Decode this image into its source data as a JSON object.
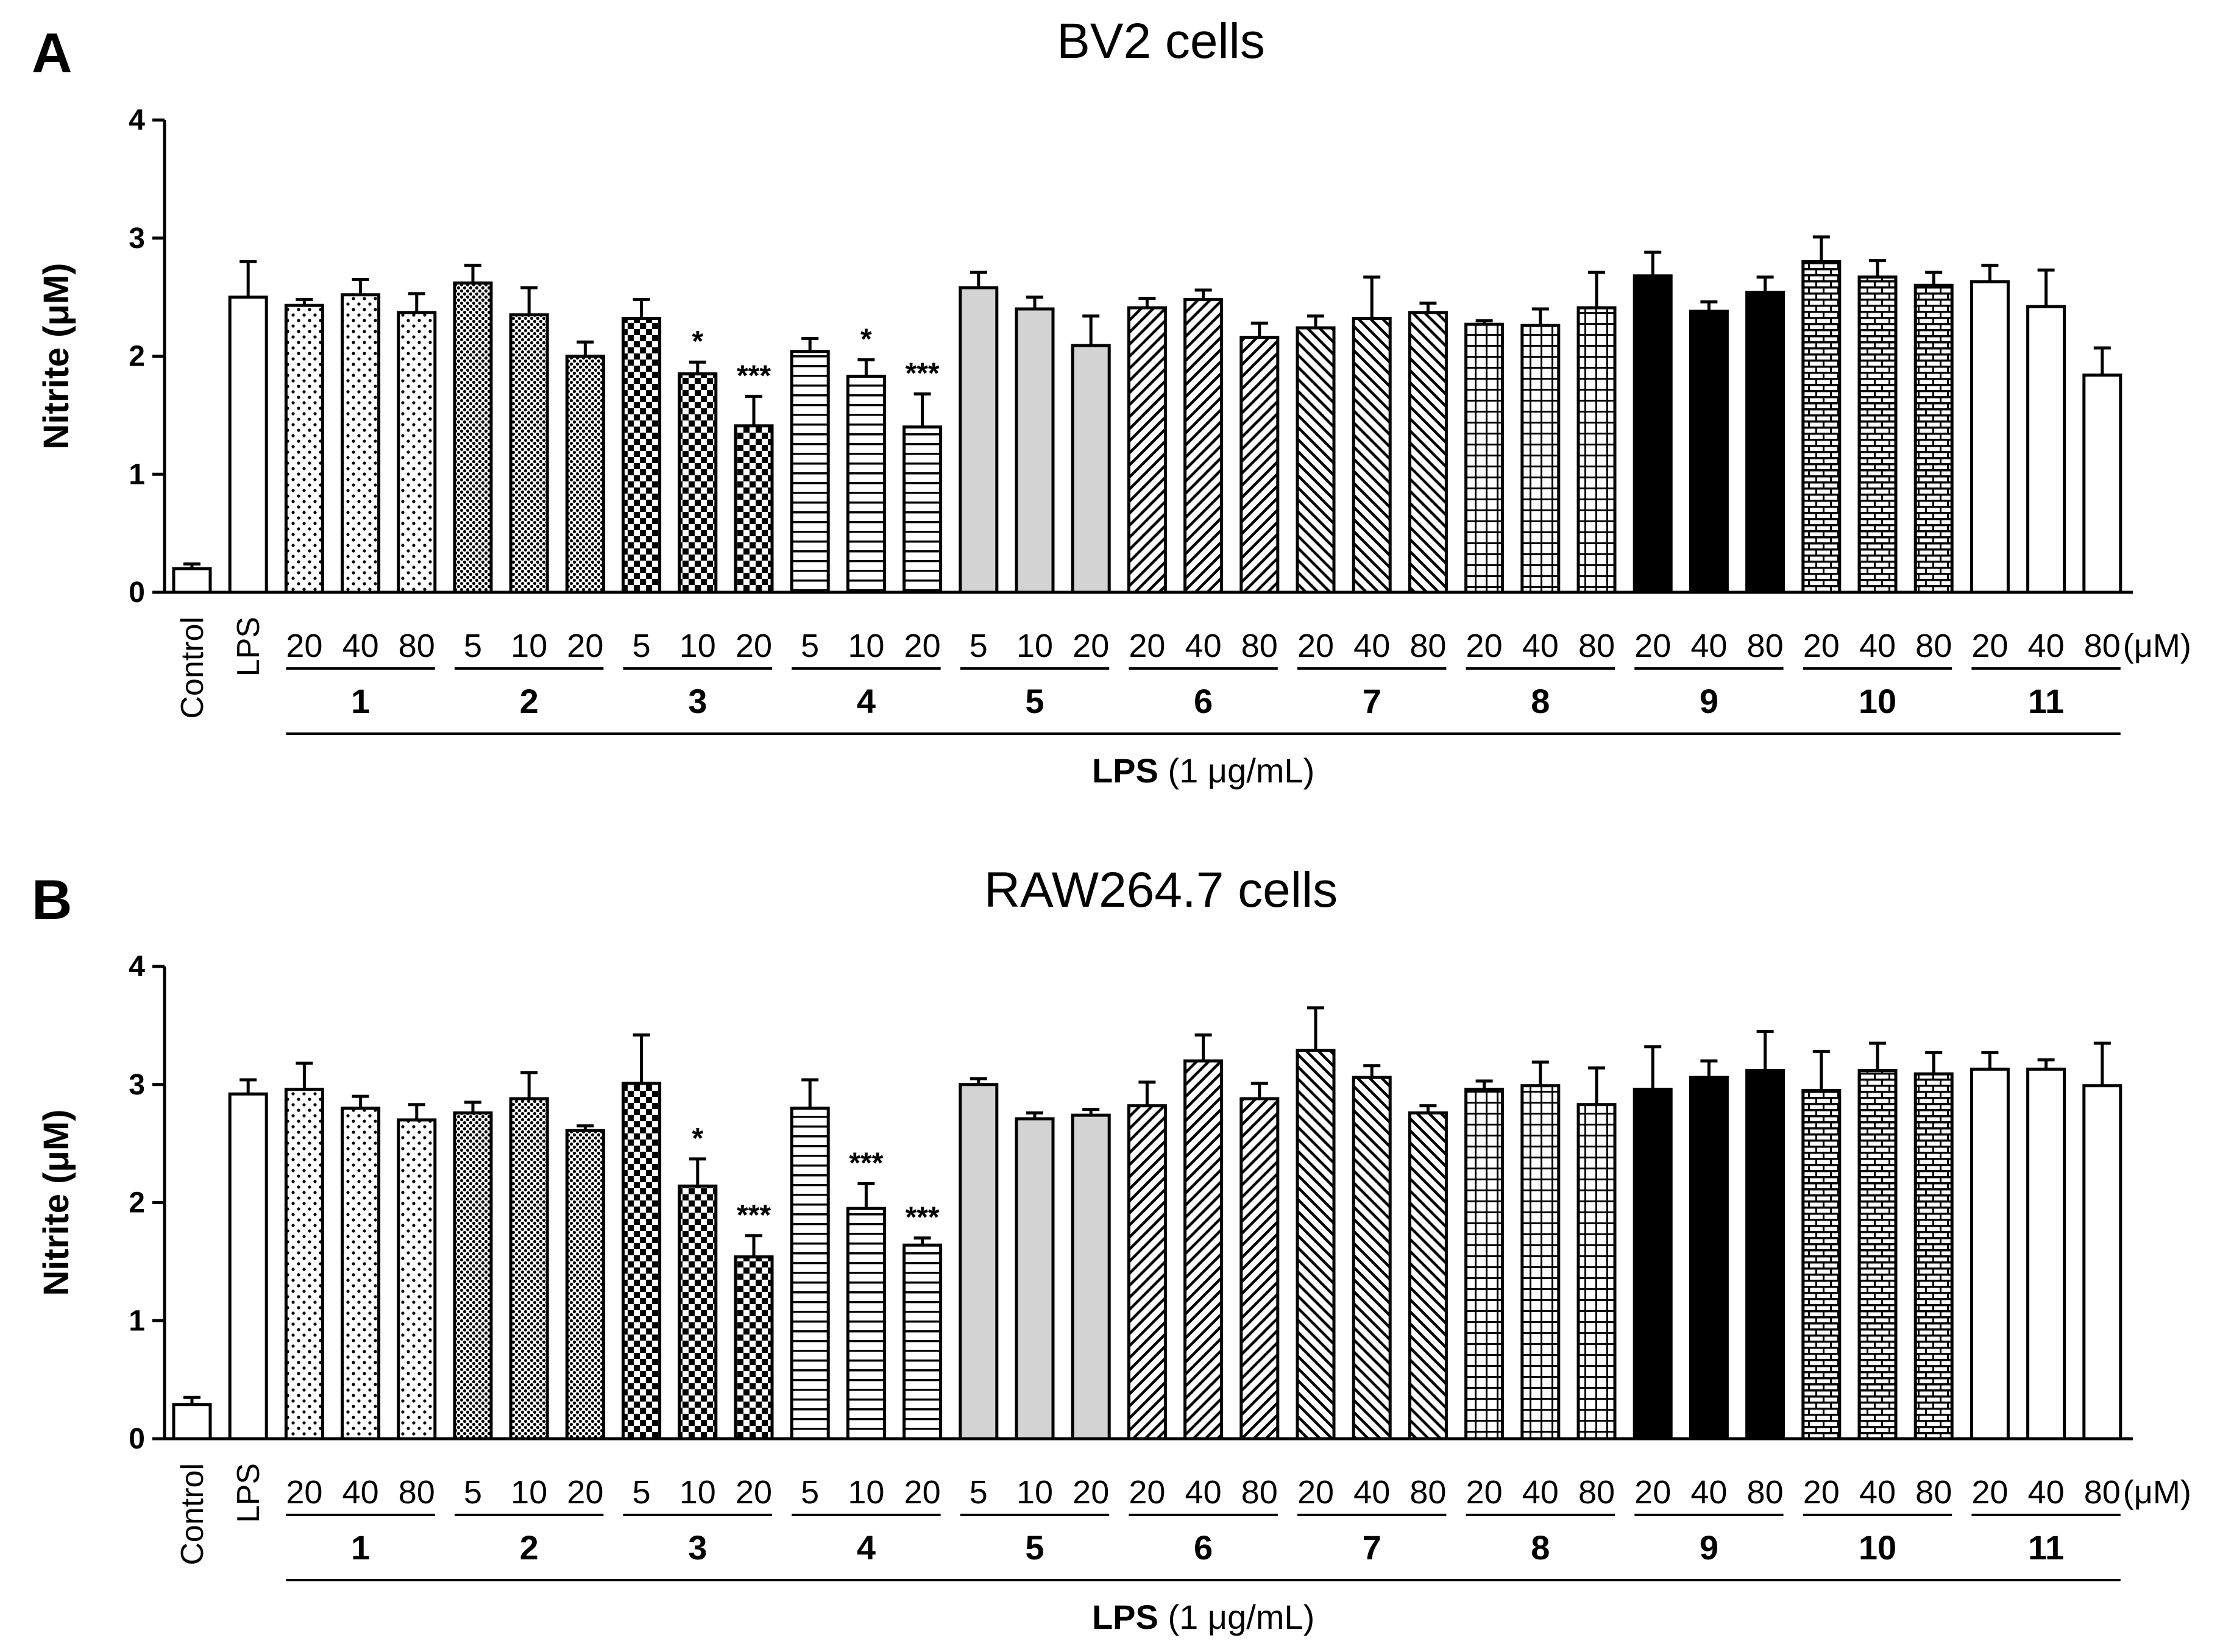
{
  "chart_data": [
    {
      "type": "bar",
      "panel_label": "A",
      "title": "BV2  cells",
      "ylabel": "Nitrite (μM)",
      "ylim": [
        0,
        4
      ],
      "yticks": [
        "0",
        "1",
        "2",
        "3",
        "4"
      ],
      "unit_label": "(μM)",
      "treatment_label_bold": "LPS",
      "treatment_label_rest": " (1 μg/mL)",
      "bars": [
        {
          "label": "Control",
          "group": "",
          "value": 0.2,
          "error": 0.04,
          "pattern": "white",
          "sig": ""
        },
        {
          "label": "LPS",
          "group": "",
          "value": 2.5,
          "error": 0.3,
          "pattern": "white",
          "sig": ""
        },
        {
          "label": "20",
          "group": "1",
          "value": 2.43,
          "error": 0.05,
          "pattern": "sparse-dots",
          "sig": ""
        },
        {
          "label": "40",
          "group": "1",
          "value": 2.52,
          "error": 0.13,
          "pattern": "sparse-dots",
          "sig": ""
        },
        {
          "label": "80",
          "group": "1",
          "value": 2.37,
          "error": 0.16,
          "pattern": "sparse-dots",
          "sig": ""
        },
        {
          "label": "5",
          "group": "2",
          "value": 2.62,
          "error": 0.15,
          "pattern": "dense-dots",
          "sig": ""
        },
        {
          "label": "10",
          "group": "2",
          "value": 2.35,
          "error": 0.23,
          "pattern": "dense-dots",
          "sig": ""
        },
        {
          "label": "20",
          "group": "2",
          "value": 2.0,
          "error": 0.12,
          "pattern": "dense-dots",
          "sig": ""
        },
        {
          "label": "5",
          "group": "3",
          "value": 2.32,
          "error": 0.16,
          "pattern": "checker",
          "sig": ""
        },
        {
          "label": "10",
          "group": "3",
          "value": 1.85,
          "error": 0.1,
          "pattern": "checker",
          "sig": "*"
        },
        {
          "label": "20",
          "group": "3",
          "value": 1.41,
          "error": 0.25,
          "pattern": "checker",
          "sig": "***"
        },
        {
          "label": "5",
          "group": "4",
          "value": 2.04,
          "error": 0.11,
          "pattern": "hlines",
          "sig": ""
        },
        {
          "label": "10",
          "group": "4",
          "value": 1.83,
          "error": 0.14,
          "pattern": "hlines",
          "sig": "*"
        },
        {
          "label": "20",
          "group": "4",
          "value": 1.4,
          "error": 0.28,
          "pattern": "hlines",
          "sig": "***"
        },
        {
          "label": "5",
          "group": "5",
          "value": 2.58,
          "error": 0.13,
          "pattern": "gray",
          "sig": ""
        },
        {
          "label": "10",
          "group": "5",
          "value": 2.4,
          "error": 0.1,
          "pattern": "gray",
          "sig": ""
        },
        {
          "label": "20",
          "group": "5",
          "value": 2.09,
          "error": 0.25,
          "pattern": "gray",
          "sig": ""
        },
        {
          "label": "20",
          "group": "6",
          "value": 2.41,
          "error": 0.08,
          "pattern": "diag-right",
          "sig": ""
        },
        {
          "label": "40",
          "group": "6",
          "value": 2.48,
          "error": 0.08,
          "pattern": "diag-right",
          "sig": ""
        },
        {
          "label": "80",
          "group": "6",
          "value": 2.16,
          "error": 0.12,
          "pattern": "diag-right",
          "sig": ""
        },
        {
          "label": "20",
          "group": "7",
          "value": 2.24,
          "error": 0.1,
          "pattern": "diag-left",
          "sig": ""
        },
        {
          "label": "40",
          "group": "7",
          "value": 2.32,
          "error": 0.35,
          "pattern": "diag-left",
          "sig": ""
        },
        {
          "label": "80",
          "group": "7",
          "value": 2.37,
          "error": 0.08,
          "pattern": "diag-left",
          "sig": ""
        },
        {
          "label": "20",
          "group": "8",
          "value": 2.27,
          "error": 0.03,
          "pattern": "grid",
          "sig": ""
        },
        {
          "label": "40",
          "group": "8",
          "value": 2.26,
          "error": 0.14,
          "pattern": "grid",
          "sig": ""
        },
        {
          "label": "80",
          "group": "8",
          "value": 2.41,
          "error": 0.3,
          "pattern": "grid",
          "sig": ""
        },
        {
          "label": "20",
          "group": "9",
          "value": 2.68,
          "error": 0.2,
          "pattern": "black",
          "sig": ""
        },
        {
          "label": "40",
          "group": "9",
          "value": 2.38,
          "error": 0.08,
          "pattern": "black",
          "sig": ""
        },
        {
          "label": "80",
          "group": "9",
          "value": 2.54,
          "error": 0.13,
          "pattern": "black",
          "sig": ""
        },
        {
          "label": "20",
          "group": "10",
          "value": 2.8,
          "error": 0.21,
          "pattern": "brick",
          "sig": ""
        },
        {
          "label": "40",
          "group": "10",
          "value": 2.67,
          "error": 0.14,
          "pattern": "brick",
          "sig": ""
        },
        {
          "label": "80",
          "group": "10",
          "value": 2.6,
          "error": 0.11,
          "pattern": "brick",
          "sig": ""
        },
        {
          "label": "20",
          "group": "11",
          "value": 2.63,
          "error": 0.14,
          "pattern": "white",
          "sig": ""
        },
        {
          "label": "40",
          "group": "11",
          "value": 2.42,
          "error": 0.31,
          "pattern": "white",
          "sig": ""
        },
        {
          "label": "80",
          "group": "11",
          "value": 1.84,
          "error": 0.23,
          "pattern": "white",
          "sig": ""
        }
      ]
    },
    {
      "type": "bar",
      "panel_label": "B",
      "title": "RAW264.7  cells",
      "ylabel": "Nitrite (μM)",
      "ylim": [
        0,
        4
      ],
      "yticks": [
        "0",
        "1",
        "2",
        "3",
        "4"
      ],
      "unit_label": "(μM)",
      "treatment_label_bold": "LPS",
      "treatment_label_rest": " (1 μg/mL)",
      "bars": [
        {
          "label": "Control",
          "group": "",
          "value": 0.29,
          "error": 0.06,
          "pattern": "white",
          "sig": ""
        },
        {
          "label": "LPS",
          "group": "",
          "value": 2.92,
          "error": 0.12,
          "pattern": "white",
          "sig": ""
        },
        {
          "label": "20",
          "group": "1",
          "value": 2.96,
          "error": 0.22,
          "pattern": "sparse-dots",
          "sig": ""
        },
        {
          "label": "40",
          "group": "1",
          "value": 2.8,
          "error": 0.1,
          "pattern": "sparse-dots",
          "sig": ""
        },
        {
          "label": "80",
          "group": "1",
          "value": 2.7,
          "error": 0.13,
          "pattern": "sparse-dots",
          "sig": ""
        },
        {
          "label": "5",
          "group": "2",
          "value": 2.76,
          "error": 0.09,
          "pattern": "dense-dots",
          "sig": ""
        },
        {
          "label": "10",
          "group": "2",
          "value": 2.88,
          "error": 0.22,
          "pattern": "dense-dots",
          "sig": ""
        },
        {
          "label": "20",
          "group": "2",
          "value": 2.61,
          "error": 0.04,
          "pattern": "dense-dots",
          "sig": ""
        },
        {
          "label": "5",
          "group": "3",
          "value": 3.01,
          "error": 0.41,
          "pattern": "checker",
          "sig": ""
        },
        {
          "label": "10",
          "group": "3",
          "value": 2.14,
          "error": 0.23,
          "pattern": "checker",
          "sig": "*"
        },
        {
          "label": "20",
          "group": "3",
          "value": 1.54,
          "error": 0.18,
          "pattern": "checker",
          "sig": "***"
        },
        {
          "label": "5",
          "group": "4",
          "value": 2.8,
          "error": 0.24,
          "pattern": "hlines",
          "sig": ""
        },
        {
          "label": "10",
          "group": "4",
          "value": 1.95,
          "error": 0.21,
          "pattern": "hlines",
          "sig": "***"
        },
        {
          "label": "20",
          "group": "4",
          "value": 1.64,
          "error": 0.06,
          "pattern": "hlines",
          "sig": "***"
        },
        {
          "label": "5",
          "group": "5",
          "value": 3.0,
          "error": 0.05,
          "pattern": "gray",
          "sig": ""
        },
        {
          "label": "10",
          "group": "5",
          "value": 2.71,
          "error": 0.05,
          "pattern": "gray",
          "sig": ""
        },
        {
          "label": "20",
          "group": "5",
          "value": 2.74,
          "error": 0.05,
          "pattern": "gray",
          "sig": ""
        },
        {
          "label": "20",
          "group": "6",
          "value": 2.82,
          "error": 0.2,
          "pattern": "diag-right",
          "sig": ""
        },
        {
          "label": "40",
          "group": "6",
          "value": 3.2,
          "error": 0.22,
          "pattern": "diag-right",
          "sig": ""
        },
        {
          "label": "80",
          "group": "6",
          "value": 2.88,
          "error": 0.13,
          "pattern": "diag-right",
          "sig": ""
        },
        {
          "label": "20",
          "group": "7",
          "value": 3.29,
          "error": 0.36,
          "pattern": "diag-left",
          "sig": ""
        },
        {
          "label": "40",
          "group": "7",
          "value": 3.06,
          "error": 0.1,
          "pattern": "diag-left",
          "sig": ""
        },
        {
          "label": "80",
          "group": "7",
          "value": 2.76,
          "error": 0.06,
          "pattern": "diag-left",
          "sig": ""
        },
        {
          "label": "20",
          "group": "8",
          "value": 2.96,
          "error": 0.07,
          "pattern": "grid",
          "sig": ""
        },
        {
          "label": "40",
          "group": "8",
          "value": 2.99,
          "error": 0.2,
          "pattern": "grid",
          "sig": ""
        },
        {
          "label": "80",
          "group": "8",
          "value": 2.83,
          "error": 0.31,
          "pattern": "grid",
          "sig": ""
        },
        {
          "label": "20",
          "group": "9",
          "value": 2.96,
          "error": 0.36,
          "pattern": "black",
          "sig": ""
        },
        {
          "label": "40",
          "group": "9",
          "value": 3.06,
          "error": 0.14,
          "pattern": "black",
          "sig": ""
        },
        {
          "label": "80",
          "group": "9",
          "value": 3.12,
          "error": 0.33,
          "pattern": "black",
          "sig": ""
        },
        {
          "label": "20",
          "group": "10",
          "value": 2.95,
          "error": 0.33,
          "pattern": "brick",
          "sig": ""
        },
        {
          "label": "40",
          "group": "10",
          "value": 3.12,
          "error": 0.23,
          "pattern": "brick",
          "sig": ""
        },
        {
          "label": "80",
          "group": "10",
          "value": 3.09,
          "error": 0.18,
          "pattern": "brick",
          "sig": ""
        },
        {
          "label": "20",
          "group": "11",
          "value": 3.13,
          "error": 0.14,
          "pattern": "white",
          "sig": ""
        },
        {
          "label": "40",
          "group": "11",
          "value": 3.13,
          "error": 0.08,
          "pattern": "white",
          "sig": ""
        },
        {
          "label": "80",
          "group": "11",
          "value": 2.99,
          "error": 0.36,
          "pattern": "white",
          "sig": ""
        }
      ]
    }
  ]
}
